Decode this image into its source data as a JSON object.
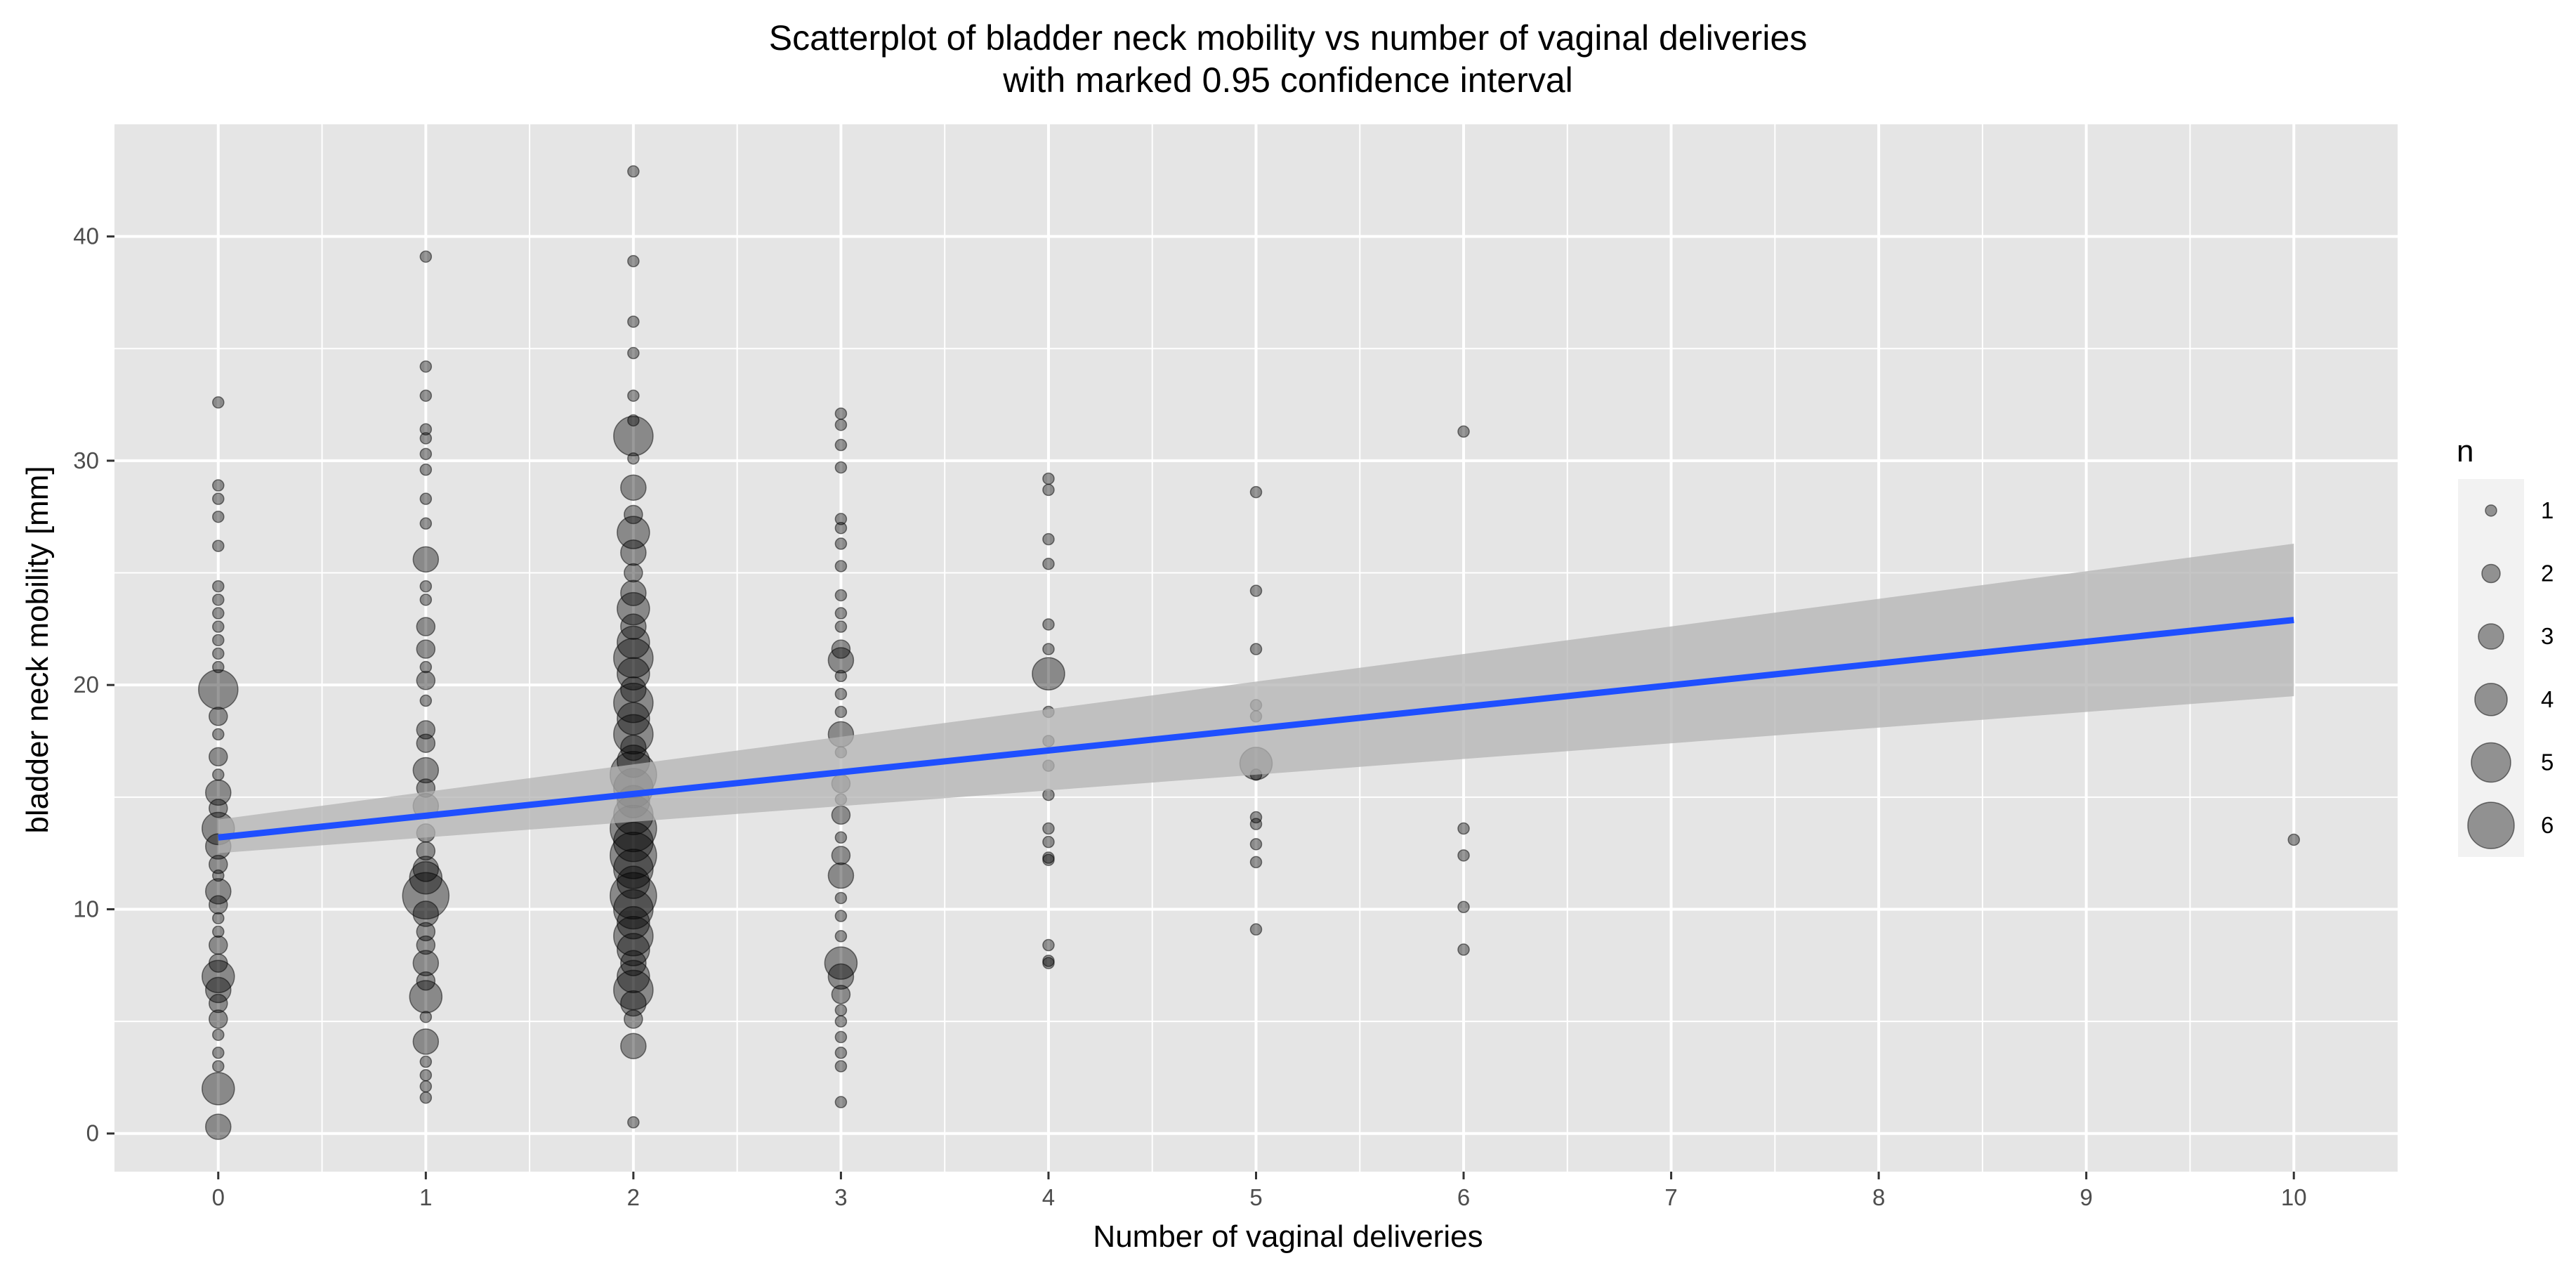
{
  "chart_data": {
    "type": "scatter",
    "title": "Scatterplot of bladder neck mobility vs number of vaginal deliveries",
    "subtitle": "with marked 0.95 confidence interval",
    "xlabel": "Number of vaginal deliveries",
    "ylabel": "bladder neck mobility [mm]",
    "xlim": [
      -0.5,
      10.5
    ],
    "ylim": [
      -1.7,
      45
    ],
    "x_ticks": [
      0,
      1,
      2,
      3,
      4,
      5,
      6,
      7,
      8,
      9,
      10
    ],
    "y_ticks": [
      0,
      10,
      20,
      30,
      40
    ],
    "grid": true,
    "legend": {
      "title": "n",
      "placement": "right",
      "sizes": [
        1,
        2,
        3,
        4,
        5,
        6
      ]
    },
    "colors": {
      "panel_background": "#e5e5e5",
      "grid": "#ffffff",
      "points": "#000000",
      "fit_line": "#1f4fff",
      "confidence_band": "#b3b3b3"
    },
    "series": [
      {
        "type": "scatter",
        "points": [
          {
            "x": 0,
            "y": 32.6,
            "n": 1
          },
          {
            "x": 0,
            "y": 28.9,
            "n": 1
          },
          {
            "x": 0,
            "y": 28.3,
            "n": 1
          },
          {
            "x": 0,
            "y": 27.5,
            "n": 1
          },
          {
            "x": 0,
            "y": 26.2,
            "n": 1
          },
          {
            "x": 0,
            "y": 24.4,
            "n": 1
          },
          {
            "x": 0,
            "y": 23.8,
            "n": 1
          },
          {
            "x": 0,
            "y": 23.2,
            "n": 1
          },
          {
            "x": 0,
            "y": 22.6,
            "n": 1
          },
          {
            "x": 0,
            "y": 22.0,
            "n": 1
          },
          {
            "x": 0,
            "y": 21.4,
            "n": 1
          },
          {
            "x": 0,
            "y": 20.8,
            "n": 1
          },
          {
            "x": 0,
            "y": 19.8,
            "n": 5
          },
          {
            "x": 0,
            "y": 18.6,
            "n": 2
          },
          {
            "x": 0,
            "y": 17.8,
            "n": 1
          },
          {
            "x": 0,
            "y": 16.8,
            "n": 2
          },
          {
            "x": 0,
            "y": 16.0,
            "n": 1
          },
          {
            "x": 0,
            "y": 15.2,
            "n": 3
          },
          {
            "x": 0,
            "y": 14.5,
            "n": 2
          },
          {
            "x": 0,
            "y": 13.6,
            "n": 4
          },
          {
            "x": 0,
            "y": 12.8,
            "n": 3
          },
          {
            "x": 0,
            "y": 12.0,
            "n": 2
          },
          {
            "x": 0,
            "y": 11.5,
            "n": 1
          },
          {
            "x": 0,
            "y": 10.8,
            "n": 3
          },
          {
            "x": 0,
            "y": 10.2,
            "n": 2
          },
          {
            "x": 0,
            "y": 9.6,
            "n": 1
          },
          {
            "x": 0,
            "y": 9.0,
            "n": 1
          },
          {
            "x": 0,
            "y": 8.4,
            "n": 2
          },
          {
            "x": 0,
            "y": 7.6,
            "n": 2
          },
          {
            "x": 0,
            "y": 7.0,
            "n": 4
          },
          {
            "x": 0,
            "y": 6.4,
            "n": 3
          },
          {
            "x": 0,
            "y": 5.8,
            "n": 2
          },
          {
            "x": 0,
            "y": 5.1,
            "n": 2
          },
          {
            "x": 0,
            "y": 4.4,
            "n": 1
          },
          {
            "x": 0,
            "y": 3.6,
            "n": 1
          },
          {
            "x": 0,
            "y": 3.0,
            "n": 1
          },
          {
            "x": 0,
            "y": 2.0,
            "n": 4
          },
          {
            "x": 0,
            "y": 0.3,
            "n": 3
          },
          {
            "x": 1,
            "y": 39.1,
            "n": 1
          },
          {
            "x": 1,
            "y": 34.2,
            "n": 1
          },
          {
            "x": 1,
            "y": 32.9,
            "n": 1
          },
          {
            "x": 1,
            "y": 31.4,
            "n": 1
          },
          {
            "x": 1,
            "y": 31.0,
            "n": 1
          },
          {
            "x": 1,
            "y": 30.3,
            "n": 1
          },
          {
            "x": 1,
            "y": 29.6,
            "n": 1
          },
          {
            "x": 1,
            "y": 28.3,
            "n": 1
          },
          {
            "x": 1,
            "y": 27.2,
            "n": 1
          },
          {
            "x": 1,
            "y": 25.6,
            "n": 3
          },
          {
            "x": 1,
            "y": 24.4,
            "n": 1
          },
          {
            "x": 1,
            "y": 23.8,
            "n": 1
          },
          {
            "x": 1,
            "y": 22.6,
            "n": 2
          },
          {
            "x": 1,
            "y": 21.6,
            "n": 2
          },
          {
            "x": 1,
            "y": 20.8,
            "n": 1
          },
          {
            "x": 1,
            "y": 20.2,
            "n": 2
          },
          {
            "x": 1,
            "y": 19.3,
            "n": 1
          },
          {
            "x": 1,
            "y": 18.0,
            "n": 2
          },
          {
            "x": 1,
            "y": 17.4,
            "n": 2
          },
          {
            "x": 1,
            "y": 16.2,
            "n": 3
          },
          {
            "x": 1,
            "y": 15.4,
            "n": 2
          },
          {
            "x": 1,
            "y": 14.6,
            "n": 3
          },
          {
            "x": 1,
            "y": 13.4,
            "n": 2
          },
          {
            "x": 1,
            "y": 12.6,
            "n": 2
          },
          {
            "x": 1,
            "y": 11.8,
            "n": 3
          },
          {
            "x": 1,
            "y": 11.4,
            "n": 4
          },
          {
            "x": 1,
            "y": 10.6,
            "n": 6
          },
          {
            "x": 1,
            "y": 9.8,
            "n": 3
          },
          {
            "x": 1,
            "y": 9.0,
            "n": 2
          },
          {
            "x": 1,
            "y": 8.4,
            "n": 2
          },
          {
            "x": 1,
            "y": 7.6,
            "n": 3
          },
          {
            "x": 1,
            "y": 6.8,
            "n": 2
          },
          {
            "x": 1,
            "y": 6.1,
            "n": 4
          },
          {
            "x": 1,
            "y": 5.2,
            "n": 1
          },
          {
            "x": 1,
            "y": 4.1,
            "n": 3
          },
          {
            "x": 1,
            "y": 3.2,
            "n": 1
          },
          {
            "x": 1,
            "y": 2.6,
            "n": 1
          },
          {
            "x": 1,
            "y": 2.1,
            "n": 1
          },
          {
            "x": 1,
            "y": 1.6,
            "n": 1
          },
          {
            "x": 2,
            "y": 42.9,
            "n": 1
          },
          {
            "x": 2,
            "y": 38.9,
            "n": 1
          },
          {
            "x": 2,
            "y": 36.2,
            "n": 1
          },
          {
            "x": 2,
            "y": 34.8,
            "n": 1
          },
          {
            "x": 2,
            "y": 32.9,
            "n": 1
          },
          {
            "x": 2,
            "y": 31.8,
            "n": 1
          },
          {
            "x": 2,
            "y": 31.1,
            "n": 5
          },
          {
            "x": 2,
            "y": 30.1,
            "n": 1
          },
          {
            "x": 2,
            "y": 28.8,
            "n": 3
          },
          {
            "x": 2,
            "y": 27.6,
            "n": 2
          },
          {
            "x": 2,
            "y": 26.8,
            "n": 4
          },
          {
            "x": 2,
            "y": 25.9,
            "n": 3
          },
          {
            "x": 2,
            "y": 25.0,
            "n": 2
          },
          {
            "x": 2,
            "y": 24.1,
            "n": 3
          },
          {
            "x": 2,
            "y": 23.4,
            "n": 4
          },
          {
            "x": 2,
            "y": 22.6,
            "n": 3
          },
          {
            "x": 2,
            "y": 21.9,
            "n": 4
          },
          {
            "x": 2,
            "y": 21.2,
            "n": 5
          },
          {
            "x": 2,
            "y": 20.5,
            "n": 4
          },
          {
            "x": 2,
            "y": 19.8,
            "n": 3
          },
          {
            "x": 2,
            "y": 19.2,
            "n": 5
          },
          {
            "x": 2,
            "y": 18.5,
            "n": 4
          },
          {
            "x": 2,
            "y": 17.8,
            "n": 5
          },
          {
            "x": 2,
            "y": 17.2,
            "n": 3
          },
          {
            "x": 2,
            "y": 16.6,
            "n": 4
          },
          {
            "x": 2,
            "y": 16.0,
            "n": 6
          },
          {
            "x": 2,
            "y": 15.4,
            "n": 5
          },
          {
            "x": 2,
            "y": 14.8,
            "n": 4
          },
          {
            "x": 2,
            "y": 14.2,
            "n": 5
          },
          {
            "x": 2,
            "y": 13.6,
            "n": 6
          },
          {
            "x": 2,
            "y": 13.0,
            "n": 5
          },
          {
            "x": 2,
            "y": 12.4,
            "n": 6
          },
          {
            "x": 2,
            "y": 11.8,
            "n": 5
          },
          {
            "x": 2,
            "y": 11.2,
            "n": 4
          },
          {
            "x": 2,
            "y": 10.6,
            "n": 6
          },
          {
            "x": 2,
            "y": 10.0,
            "n": 5
          },
          {
            "x": 2,
            "y": 9.4,
            "n": 4
          },
          {
            "x": 2,
            "y": 8.8,
            "n": 5
          },
          {
            "x": 2,
            "y": 8.2,
            "n": 4
          },
          {
            "x": 2,
            "y": 7.6,
            "n": 3
          },
          {
            "x": 2,
            "y": 7.0,
            "n": 4
          },
          {
            "x": 2,
            "y": 6.4,
            "n": 5
          },
          {
            "x": 2,
            "y": 5.8,
            "n": 3
          },
          {
            "x": 2,
            "y": 5.1,
            "n": 2
          },
          {
            "x": 2,
            "y": 3.9,
            "n": 3
          },
          {
            "x": 2,
            "y": 0.5,
            "n": 1
          },
          {
            "x": 3,
            "y": 32.1,
            "n": 1
          },
          {
            "x": 3,
            "y": 31.6,
            "n": 1
          },
          {
            "x": 3,
            "y": 30.7,
            "n": 1
          },
          {
            "x": 3,
            "y": 29.7,
            "n": 1
          },
          {
            "x": 3,
            "y": 27.4,
            "n": 1
          },
          {
            "x": 3,
            "y": 27.0,
            "n": 1
          },
          {
            "x": 3,
            "y": 26.3,
            "n": 1
          },
          {
            "x": 3,
            "y": 25.3,
            "n": 1
          },
          {
            "x": 3,
            "y": 24.0,
            "n": 1
          },
          {
            "x": 3,
            "y": 23.2,
            "n": 1
          },
          {
            "x": 3,
            "y": 22.6,
            "n": 1
          },
          {
            "x": 3,
            "y": 21.6,
            "n": 2
          },
          {
            "x": 3,
            "y": 21.1,
            "n": 3
          },
          {
            "x": 3,
            "y": 20.4,
            "n": 1
          },
          {
            "x": 3,
            "y": 19.6,
            "n": 1
          },
          {
            "x": 3,
            "y": 18.8,
            "n": 1
          },
          {
            "x": 3,
            "y": 17.8,
            "n": 3
          },
          {
            "x": 3,
            "y": 17.0,
            "n": 1
          },
          {
            "x": 3,
            "y": 15.6,
            "n": 2
          },
          {
            "x": 3,
            "y": 14.9,
            "n": 1
          },
          {
            "x": 3,
            "y": 14.2,
            "n": 2
          },
          {
            "x": 3,
            "y": 13.2,
            "n": 1
          },
          {
            "x": 3,
            "y": 12.4,
            "n": 2
          },
          {
            "x": 3,
            "y": 11.5,
            "n": 3
          },
          {
            "x": 3,
            "y": 10.5,
            "n": 1
          },
          {
            "x": 3,
            "y": 9.7,
            "n": 1
          },
          {
            "x": 3,
            "y": 8.8,
            "n": 1
          },
          {
            "x": 3,
            "y": 7.6,
            "n": 4
          },
          {
            "x": 3,
            "y": 7.0,
            "n": 3
          },
          {
            "x": 3,
            "y": 6.2,
            "n": 2
          },
          {
            "x": 3,
            "y": 5.5,
            "n": 1
          },
          {
            "x": 3,
            "y": 5.0,
            "n": 1
          },
          {
            "x": 3,
            "y": 4.3,
            "n": 1
          },
          {
            "x": 3,
            "y": 3.6,
            "n": 1
          },
          {
            "x": 3,
            "y": 3.0,
            "n": 1
          },
          {
            "x": 3,
            "y": 1.4,
            "n": 1
          },
          {
            "x": 4,
            "y": 29.2,
            "n": 1
          },
          {
            "x": 4,
            "y": 28.7,
            "n": 1
          },
          {
            "x": 4,
            "y": 26.5,
            "n": 1
          },
          {
            "x": 4,
            "y": 25.4,
            "n": 1
          },
          {
            "x": 4,
            "y": 22.7,
            "n": 1
          },
          {
            "x": 4,
            "y": 21.6,
            "n": 1
          },
          {
            "x": 4,
            "y": 20.5,
            "n": 4
          },
          {
            "x": 4,
            "y": 18.8,
            "n": 1
          },
          {
            "x": 4,
            "y": 17.5,
            "n": 1
          },
          {
            "x": 4,
            "y": 16.4,
            "n": 1
          },
          {
            "x": 4,
            "y": 15.1,
            "n": 1
          },
          {
            "x": 4,
            "y": 13.6,
            "n": 1
          },
          {
            "x": 4,
            "y": 13.0,
            "n": 1
          },
          {
            "x": 4,
            "y": 12.3,
            "n": 1
          },
          {
            "x": 4,
            "y": 12.2,
            "n": 1
          },
          {
            "x": 4,
            "y": 8.4,
            "n": 1
          },
          {
            "x": 4,
            "y": 7.7,
            "n": 1
          },
          {
            "x": 4,
            "y": 7.6,
            "n": 1
          },
          {
            "x": 5,
            "y": 28.6,
            "n": 1
          },
          {
            "x": 5,
            "y": 24.2,
            "n": 1
          },
          {
            "x": 5,
            "y": 21.6,
            "n": 1
          },
          {
            "x": 5,
            "y": 19.1,
            "n": 1
          },
          {
            "x": 5,
            "y": 18.6,
            "n": 1
          },
          {
            "x": 5,
            "y": 16.5,
            "n": 4
          },
          {
            "x": 5,
            "y": 16.0,
            "n": 1
          },
          {
            "x": 5,
            "y": 14.1,
            "n": 1
          },
          {
            "x": 5,
            "y": 13.8,
            "n": 1
          },
          {
            "x": 5,
            "y": 12.9,
            "n": 1
          },
          {
            "x": 5,
            "y": 12.1,
            "n": 1
          },
          {
            "x": 5,
            "y": 9.1,
            "n": 1
          },
          {
            "x": 6,
            "y": 31.3,
            "n": 1
          },
          {
            "x": 6,
            "y": 13.6,
            "n": 1
          },
          {
            "x": 6,
            "y": 12.4,
            "n": 1
          },
          {
            "x": 6,
            "y": 10.1,
            "n": 1
          },
          {
            "x": 6,
            "y": 8.2,
            "n": 1
          },
          {
            "x": 10,
            "y": 13.1,
            "n": 1
          }
        ]
      },
      {
        "type": "line",
        "x": [
          0,
          10
        ],
        "y": [
          13.2,
          22.9
        ],
        "ci_lower": [
          12.5,
          19.5
        ],
        "ci_upper": [
          14.0,
          26.3
        ]
      }
    ]
  }
}
